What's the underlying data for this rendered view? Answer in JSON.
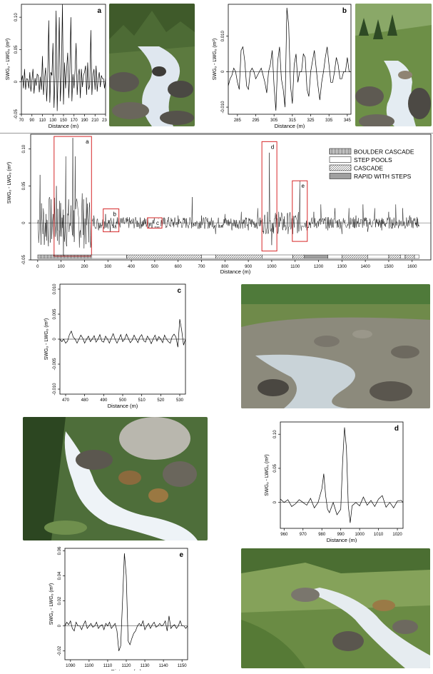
{
  "ylabel": "SWGₒ - LWGₒ (m²)",
  "xlabel": "Distance (m)",
  "legend": {
    "items": [
      {
        "label": "BOULDER CASCADE",
        "pattern": "vertical-lines"
      },
      {
        "label": "STEP POOLS",
        "pattern": "blank"
      },
      {
        "label": "CASCADE",
        "pattern": "diagonal-lines"
      },
      {
        "label": "RAPID WITH STEPS",
        "pattern": "solid-gray"
      }
    ]
  },
  "panels": {
    "a": {
      "letter": "a"
    },
    "b": {
      "letter": "b"
    },
    "c": {
      "letter": "c"
    },
    "d": {
      "letter": "d"
    },
    "e": {
      "letter": "e"
    },
    "main": {
      "box_labels": [
        "a",
        "b",
        "c",
        "d",
        "e"
      ]
    }
  },
  "photos": [
    {
      "id": "photo-a",
      "description_icon": "mountain-stream-photo"
    },
    {
      "id": "photo-b",
      "description_icon": "mountain-stream-photo"
    },
    {
      "id": "photo-c",
      "description_icon": "mountain-stream-photo"
    },
    {
      "id": "photo-d",
      "description_icon": "waterfall-photo"
    },
    {
      "id": "photo-e",
      "description_icon": "mountain-stream-photo"
    }
  ],
  "colors": {
    "highlight": "#d62728",
    "line": "#000000",
    "zero": "#8c8c8c",
    "legend_gray": "#a0a0a0"
  },
  "chart_data": [
    {
      "id": "a",
      "type": "line",
      "xlim": [
        70,
        230
      ],
      "ylim": [
        -0.05,
        0.12
      ],
      "xticks": [
        70,
        90,
        110,
        130,
        150,
        170,
        190,
        210,
        230
      ],
      "yticks": [
        -0.05,
        0,
        0.05,
        0.1
      ],
      "yticklabels": [
        "-0.05",
        "0",
        "0.05",
        "0.10"
      ],
      "x": [
        70,
        72,
        74,
        76,
        78,
        80,
        82,
        84,
        86,
        88,
        90,
        92,
        94,
        96,
        98,
        100,
        102,
        104,
        106,
        108,
        110,
        112,
        114,
        116,
        118,
        120,
        122,
        124,
        126,
        128,
        130,
        132,
        134,
        136,
        138,
        140,
        142,
        144,
        146,
        148,
        150,
        152,
        154,
        156,
        158,
        160,
        162,
        164,
        166,
        168,
        170,
        172,
        174,
        176,
        178,
        180,
        182,
        184,
        186,
        188,
        190,
        192,
        194,
        196,
        198,
        200,
        202,
        204,
        206,
        208,
        210,
        212,
        214,
        216,
        218,
        220,
        222,
        224,
        226,
        228,
        230
      ],
      "y": [
        0,
        0.01,
        -0.01,
        0.02,
        -0.012,
        0.005,
        0.004,
        -0.01,
        0.015,
        -0.015,
        0.003,
        0.02,
        -0.018,
        0.006,
        -0.006,
        0.012,
        0.01,
        -0.016,
        0.008,
        -0.012,
        0.04,
        -0.02,
        0.005,
        0.022,
        -0.03,
        0.008,
        0.095,
        -0.032,
        0.015,
        0.01,
        0.06,
        -0.04,
        0.01,
        0.11,
        -0.045,
        0.02,
        0.1,
        -0.03,
        0.01,
        0.12,
        -0.035,
        0.03,
        -0.01,
        0.02,
        0.045,
        -0.025,
        0.015,
        0.1,
        -0.03,
        0.012,
        -0.01,
        0.018,
        0.06,
        -0.02,
        0.01,
        0.02,
        -0.025,
        0.02,
        -0.008,
        0.01,
        0.015,
        0.025,
        -0.02,
        0.03,
        -0.012,
        -0.005,
        0.08,
        -0.02,
        0.01,
        0.02,
        -0.012,
        0.025,
        -0.015,
        0.005,
        0.015,
        -0.008,
        0.01,
        0.005,
        0.005,
        -0.01,
        0.005
      ]
    },
    {
      "id": "b",
      "type": "line",
      "xlim": [
        280,
        347
      ],
      "ylim": [
        -0.012,
        0.019
      ],
      "xticks": [
        285,
        295,
        305,
        315,
        325,
        335,
        345
      ],
      "yticks": [
        -0.01,
        0,
        0.01
      ],
      "yticklabels": [
        "-0.010",
        "0",
        "0.010"
      ],
      "x": [
        280,
        281,
        282,
        283,
        284,
        285,
        286,
        287,
        288,
        289,
        290,
        291,
        292,
        293,
        294,
        295,
        296,
        297,
        298,
        299,
        300,
        301,
        302,
        303,
        304,
        305,
        306,
        307,
        308,
        309,
        310,
        311,
        312,
        313,
        314,
        315,
        316,
        317,
        318,
        319,
        320,
        321,
        322,
        323,
        324,
        325,
        326,
        327,
        328,
        329,
        330,
        331,
        332,
        333,
        334,
        335,
        336,
        337,
        338,
        339,
        340,
        341,
        342,
        343,
        344,
        345,
        346,
        347
      ],
      "y": [
        -0.004,
        -0.002,
        -0.001,
        0.001,
        0.0,
        -0.003,
        -0.005,
        0.006,
        0.007,
        0.003,
        -0.004,
        -0.005,
        0.0,
        0.001,
        0.0,
        -0.002,
        -0.001,
        0.0,
        0.001,
        -0.001,
        -0.003,
        -0.006,
        0.0,
        0.002,
        0.006,
        -0.004,
        -0.011,
        0.003,
        0.007,
        -0.002,
        -0.005,
        -0.01,
        0.018,
        0.013,
        -0.004,
        -0.009,
        0.002,
        0.005,
        -0.003,
        0.0,
        0.0,
        0.005,
        0.004,
        -0.005,
        -0.007,
        0.0,
        0.003,
        0.006,
        0.001,
        -0.004,
        -0.008,
        -0.003,
        0.0,
        0.004,
        0.007,
        0.002,
        -0.003,
        -0.003,
        0.0,
        0.004,
        0.002,
        -0.002,
        -0.002,
        0.0,
        0.0,
        0.004,
        0.0,
        0.0
      ]
    },
    {
      "id": "main",
      "type": "line",
      "xlim": [
        -30,
        1680
      ],
      "ylim": [
        -0.05,
        0.12
      ],
      "xticks": [
        0,
        100,
        200,
        300,
        400,
        500,
        600,
        700,
        800,
        900,
        1000,
        1100,
        1200,
        1300,
        1400,
        1500,
        1600
      ],
      "yticks": [
        -0.05,
        0,
        0.05,
        0.1
      ],
      "yticklabels": [
        "-0.05",
        "0",
        "0.05",
        "0.10"
      ],
      "spikes": [
        [
          10,
          0.065
        ],
        [
          30,
          -0.02
        ],
        [
          50,
          0.035
        ],
        [
          65,
          -0.03
        ],
        [
          80,
          0.05
        ],
        [
          95,
          0.06
        ],
        [
          110,
          -0.045
        ],
        [
          120,
          0.09
        ],
        [
          135,
          0.105
        ],
        [
          145,
          -0.04
        ],
        [
          150,
          0.115
        ],
        [
          160,
          0.09
        ],
        [
          175,
          0.05
        ],
        [
          190,
          0.04
        ],
        [
          205,
          -0.025
        ],
        [
          215,
          0.065
        ],
        [
          240,
          0.01
        ],
        [
          260,
          -0.01
        ],
        [
          290,
          0.012
        ],
        [
          310,
          -0.012
        ],
        [
          340,
          0.008
        ],
        [
          420,
          0.005
        ],
        [
          500,
          0.003
        ],
        [
          560,
          0.008
        ],
        [
          600,
          0.01
        ],
        [
          660,
          0.035
        ],
        [
          700,
          0.01
        ],
        [
          760,
          -0.015
        ],
        [
          800,
          0.012
        ],
        [
          830,
          -0.01
        ],
        [
          870,
          0.015
        ],
        [
          900,
          -0.01
        ],
        [
          940,
          0.02
        ],
        [
          975,
          0.04
        ],
        [
          990,
          0.095
        ],
        [
          1000,
          -0.03
        ],
        [
          1030,
          0.015
        ],
        [
          1060,
          -0.01
        ],
        [
          1090,
          -0.015
        ],
        [
          1120,
          0.057
        ],
        [
          1150,
          -0.01
        ],
        [
          1180,
          0.015
        ],
        [
          1210,
          0.025
        ],
        [
          1240,
          -0.01
        ],
        [
          1270,
          0.02
        ],
        [
          1300,
          -0.015
        ],
        [
          1330,
          0.02
        ],
        [
          1360,
          0.01
        ],
        [
          1390,
          0.025
        ],
        [
          1410,
          -0.012
        ],
        [
          1440,
          0.02
        ],
        [
          1470,
          -0.01
        ],
        [
          1500,
          0.015
        ],
        [
          1530,
          0.025
        ],
        [
          1560,
          0.02
        ],
        [
          1590,
          0.01
        ],
        [
          1620,
          0.008
        ]
      ],
      "highlight_boxes": [
        {
          "label": "a",
          "x0": 70,
          "x1": 230,
          "y0": -0.045,
          "y1": 0.117
        },
        {
          "label": "b",
          "x0": 280,
          "x1": 347,
          "y0": -0.012,
          "y1": 0.019
        },
        {
          "label": "c",
          "x0": 469,
          "x1": 531,
          "y0": -0.007,
          "y1": 0.007
        },
        {
          "label": "d",
          "x0": 958,
          "x1": 1022,
          "y0": -0.038,
          "y1": 0.11
        },
        {
          "label": "e",
          "x0": 1088,
          "x1": 1152,
          "y0": -0.025,
          "y1": 0.057
        }
      ],
      "morphology_bar": [
        {
          "type": "boulder-cascade",
          "from": 0,
          "to": 230
        },
        {
          "type": "step-pools",
          "from": 230,
          "to": 380
        },
        {
          "type": "cascade",
          "from": 380,
          "to": 700
        },
        {
          "type": "step-pools",
          "from": 700,
          "to": 760
        },
        {
          "type": "cascade",
          "from": 760,
          "to": 960
        },
        {
          "type": "step-pools",
          "from": 960,
          "to": 1090
        },
        {
          "type": "cascade",
          "from": 1090,
          "to": 1140
        },
        {
          "type": "rapid-with-steps",
          "from": 1140,
          "to": 1240
        },
        {
          "type": "step-pools",
          "from": 1240,
          "to": 1300
        },
        {
          "type": "cascade",
          "from": 1300,
          "to": 1410
        },
        {
          "type": "step-pools",
          "from": 1410,
          "to": 1500
        },
        {
          "type": "cascade",
          "from": 1500,
          "to": 1550
        },
        {
          "type": "step-pools",
          "from": 1550,
          "to": 1570
        },
        {
          "type": "cascade",
          "from": 1570,
          "to": 1610
        },
        {
          "type": "step-pools",
          "from": 1610,
          "to": 1630
        }
      ]
    },
    {
      "id": "c",
      "type": "line",
      "xlim": [
        467,
        533
      ],
      "ylim": [
        -0.011,
        0.011
      ],
      "xticks": [
        470,
        480,
        490,
        500,
        510,
        520,
        530
      ],
      "yticks": [
        -0.01,
        -0.005,
        0,
        0.005,
        0.01
      ],
      "yticklabels": [
        "-0.010",
        "-0.005",
        "0",
        "0.005",
        "0.010"
      ],
      "x": [
        467,
        468,
        469,
        470,
        471,
        472,
        473,
        474,
        475,
        476,
        477,
        478,
        479,
        480,
        481,
        482,
        483,
        484,
        485,
        486,
        487,
        488,
        489,
        490,
        491,
        492,
        493,
        494,
        495,
        496,
        497,
        498,
        499,
        500,
        501,
        502,
        503,
        504,
        505,
        506,
        507,
        508,
        509,
        510,
        511,
        512,
        513,
        514,
        515,
        516,
        517,
        518,
        519,
        520,
        521,
        522,
        523,
        524,
        525,
        526,
        527,
        528,
        529,
        530,
        531,
        532,
        533
      ],
      "y": [
        0,
        -0.0005,
        0.0,
        -0.0008,
        -0.0004,
        0.0009,
        0.0016,
        0.0004,
        0.0,
        -0.0008,
        0.0,
        0.0008,
        0.0002,
        -0.0008,
        0.0,
        0.0006,
        -0.0005,
        0.0,
        0.0007,
        -0.0006,
        0.0,
        0.0009,
        -0.0004,
        -0.0006,
        0.0006,
        0.0,
        -0.0008,
        0.0002,
        0.0011,
        0.0,
        -0.0008,
        0.0,
        0.0009,
        -0.0005,
        0.0,
        0.001,
        0.0001,
        -0.0007,
        -0.0002,
        0.0008,
        0.0,
        -0.0007,
        0.0004,
        0.0009,
        -0.0003,
        -0.0006,
        0.0006,
        0.0,
        -0.0009,
        0.0,
        0.0008,
        -0.0004,
        0.0005,
        0.0,
        -0.0007,
        0.0008,
        0.0,
        -0.0005,
        -0.0008,
        0.0005,
        0.001,
        0.0004,
        -0.0016,
        0.004,
        0.0018,
        -0.0012,
        0.0
      ]
    },
    {
      "id": "d",
      "type": "line",
      "xlim": [
        958,
        1023
      ],
      "ylim": [
        -0.038,
        0.118
      ],
      "xticks": [
        960,
        970,
        980,
        990,
        1000,
        1010,
        1020
      ],
      "yticks": [
        0,
        0.05,
        0.1
      ],
      "yticklabels": [
        "0",
        "0.05",
        "0.10"
      ],
      "x": [
        958,
        960,
        962,
        964,
        966,
        968,
        970,
        972,
        974,
        976,
        978,
        980,
        981,
        982,
        983,
        984,
        986,
        988,
        990,
        991,
        992,
        993,
        994,
        995,
        996,
        998,
        1000,
        1002,
        1004,
        1006,
        1008,
        1010,
        1012,
        1014,
        1016,
        1018,
        1020,
        1022,
        1023
      ],
      "y": [
        0.005,
        0.0,
        0.004,
        -0.006,
        -0.002,
        0.004,
        0.0,
        -0.004,
        0.006,
        -0.008,
        0.0,
        0.02,
        0.042,
        0.01,
        -0.01,
        -0.015,
        0.0,
        -0.018,
        -0.01,
        0.06,
        0.11,
        0.08,
        -0.005,
        -0.03,
        -0.005,
        0.0,
        -0.005,
        0.008,
        -0.004,
        0.003,
        -0.006,
        0.005,
        0.01,
        -0.007,
        0.0,
        -0.008,
        0.002,
        0.003,
        0.0
      ]
    },
    {
      "id": "e",
      "type": "line",
      "xlim": [
        1087,
        1153
      ],
      "ylim": [
        -0.027,
        0.062
      ],
      "xticks": [
        1090,
        1100,
        1110,
        1120,
        1130,
        1140,
        1150
      ],
      "yticks": [
        -0.02,
        0,
        0.02,
        0.04,
        0.06
      ],
      "yticklabels": [
        "-0.02",
        "0",
        "0.02",
        "0.04",
        "0.06"
      ],
      "x": [
        1087,
        1088,
        1089,
        1090,
        1091,
        1092,
        1093,
        1094,
        1095,
        1096,
        1097,
        1098,
        1099,
        1100,
        1101,
        1102,
        1103,
        1104,
        1105,
        1106,
        1107,
        1108,
        1109,
        1110,
        1111,
        1112,
        1113,
        1114,
        1115,
        1116,
        1117,
        1118,
        1119,
        1120,
        1121,
        1122,
        1123,
        1124,
        1125,
        1126,
        1127,
        1128,
        1129,
        1130,
        1131,
        1132,
        1133,
        1134,
        1135,
        1136,
        1137,
        1138,
        1139,
        1140,
        1141,
        1142,
        1143,
        1144,
        1145,
        1146,
        1147,
        1148,
        1149,
        1150,
        1151,
        1152,
        1153
      ],
      "y": [
        0,
        0.003,
        0.001,
        0.004,
        -0.002,
        -0.004,
        0.003,
        0.0,
        0.0,
        -0.003,
        0.001,
        0.004,
        -0.002,
        0.0,
        0.002,
        -0.001,
        0.0,
        0.003,
        -0.002,
        0.0,
        0.001,
        -0.003,
        0.002,
        0.0,
        0.003,
        -0.002,
        0.0,
        0.002,
        -0.004,
        -0.02,
        -0.016,
        0.02,
        0.058,
        0.04,
        -0.012,
        -0.015,
        -0.01,
        -0.006,
        -0.004,
        0.0,
        0.002,
        0.0,
        0.004,
        -0.003,
        0.0,
        0.002,
        -0.002,
        0.001,
        0.003,
        -0.001,
        0.0,
        0.002,
        0.0,
        0.001,
        0.004,
        -0.004,
        0.008,
        -0.002,
        0.0,
        0.001,
        -0.002,
        0.0,
        0.004,
        0.0,
        0.0,
        -0.002,
        0.0
      ]
    }
  ]
}
